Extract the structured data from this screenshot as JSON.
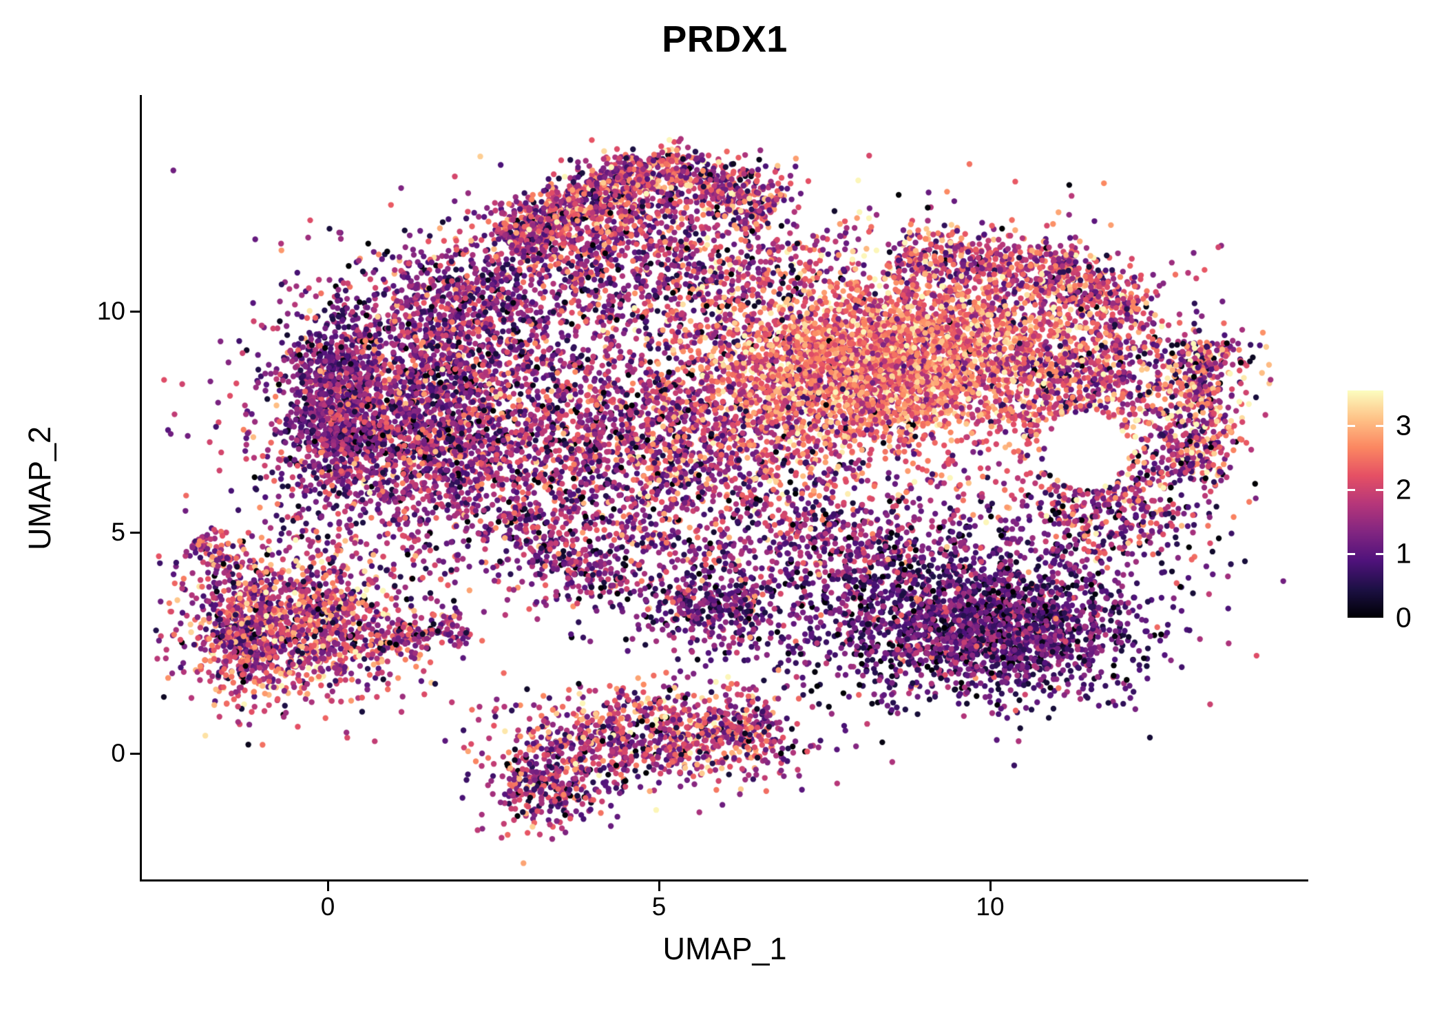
{
  "chart_data": {
    "type": "scatter",
    "title": "PRDX1",
    "xlabel": "UMAP_1",
    "ylabel": "UMAP_2",
    "x_ticks": [
      0,
      5,
      10
    ],
    "y_ticks": [
      0,
      5,
      10
    ],
    "x_range": [
      -2.8,
      14.8
    ],
    "y_range": [
      -2.9,
      14.2
    ],
    "grid": false,
    "legend": {
      "position": "right",
      "ticks": [
        0,
        1,
        2,
        3
      ],
      "vmin": 0,
      "vmax": 3.55
    },
    "colormap": {
      "name": "magma",
      "stops": [
        "#000004",
        "#1c1044",
        "#4f127b",
        "#812581",
        "#b5367a",
        "#e55064",
        "#fb8761",
        "#fec287",
        "#fcfdbf"
      ]
    },
    "point_radius_px": 4.2,
    "seed": 42,
    "hole": {
      "cx": 11.45,
      "cy": 6.85,
      "rx": 0.62,
      "ry": 0.9
    },
    "clusters": [
      {
        "name": "left-lobe",
        "shape": "gauss",
        "cx": 1.3,
        "cy": 7.6,
        "sx": 1.15,
        "sy": 1.5,
        "n": 2600,
        "expr": [
          1.4,
          0.75
        ]
      },
      {
        "name": "left-edge-dense",
        "shape": "gauss",
        "cx": 0.1,
        "cy": 8.0,
        "sx": 0.35,
        "sy": 0.95,
        "n": 600,
        "expr": [
          1.2,
          0.6
        ]
      },
      {
        "name": "left-top",
        "shape": "gauss",
        "cx": 2.3,
        "cy": 10.2,
        "sx": 0.8,
        "sy": 0.8,
        "n": 600,
        "expr": [
          1.4,
          0.7
        ]
      },
      {
        "name": "top-arm-a",
        "shape": "strip",
        "x1": 2.7,
        "y1": 11.6,
        "x2": 4.8,
        "y2": 13.3,
        "w": 0.28,
        "n": 650,
        "expr": [
          1.8,
          0.8
        ]
      },
      {
        "name": "top-arm-scatter",
        "shape": "strip",
        "x1": 3.0,
        "y1": 11.1,
        "x2": 5.2,
        "y2": 12.6,
        "w": 0.55,
        "n": 350,
        "expr": [
          1.6,
          0.8
        ]
      },
      {
        "name": "top-arm-b",
        "shape": "strip",
        "x1": 4.8,
        "y1": 13.35,
        "x2": 6.8,
        "y2": 12.4,
        "w": 0.32,
        "n": 450,
        "expr": [
          1.8,
          0.8
        ]
      },
      {
        "name": "upper-mid",
        "shape": "gauss",
        "cx": 5.3,
        "cy": 10.8,
        "sx": 1.3,
        "sy": 0.95,
        "n": 900,
        "expr": [
          1.5,
          0.8
        ]
      },
      {
        "name": "mid-band",
        "shape": "gauss",
        "cx": 5.0,
        "cy": 7.0,
        "sx": 1.6,
        "sy": 1.15,
        "n": 1700,
        "expr": [
          1.6,
          0.8
        ]
      },
      {
        "name": "core-high",
        "shape": "gauss",
        "cx": 7.9,
        "cy": 8.7,
        "sx": 1.2,
        "sy": 0.95,
        "n": 2400,
        "expr": [
          2.5,
          0.55
        ]
      },
      {
        "name": "core-right",
        "shape": "gauss",
        "cx": 9.6,
        "cy": 9.3,
        "sx": 1.0,
        "sy": 0.85,
        "n": 1000,
        "expr": [
          2.3,
          0.6
        ]
      },
      {
        "name": "top-right-arc",
        "shape": "strip",
        "x1": 8.6,
        "y1": 11.2,
        "x2": 11.3,
        "y2": 10.9,
        "w": 0.4,
        "n": 450,
        "expr": [
          1.9,
          0.8
        ]
      },
      {
        "name": "top-right-edge",
        "shape": "strip",
        "x1": 10.9,
        "y1": 11.0,
        "x2": 12.2,
        "y2": 9.9,
        "w": 0.35,
        "n": 250,
        "expr": [
          1.9,
          0.8
        ]
      },
      {
        "name": "right-lobe",
        "shape": "gauss",
        "cx": 11.4,
        "cy": 8.4,
        "sx": 1.05,
        "sy": 1.15,
        "n": 1100,
        "expr": [
          1.9,
          0.85
        ]
      },
      {
        "name": "right-edge",
        "shape": "strip",
        "x1": 13.05,
        "y1": 6.3,
        "x2": 13.2,
        "y2": 9.3,
        "w": 0.3,
        "n": 450,
        "expr": [
          1.9,
          1.0
        ]
      },
      {
        "name": "right-lower",
        "shape": "gauss",
        "cx": 11.9,
        "cy": 5.6,
        "sx": 0.8,
        "sy": 0.7,
        "n": 450,
        "expr": [
          1.5,
          0.9
        ]
      },
      {
        "name": "bottom-right-lobe",
        "shape": "gauss",
        "cx": 9.6,
        "cy": 3.1,
        "sx": 1.35,
        "sy": 0.95,
        "n": 2000,
        "expr": [
          1.0,
          0.6
        ]
      },
      {
        "name": "bottom-right-dense",
        "shape": "gauss",
        "cx": 10.6,
        "cy": 2.6,
        "sx": 0.7,
        "sy": 0.6,
        "n": 500,
        "expr": [
          0.9,
          0.5
        ]
      },
      {
        "name": "br-connector",
        "shape": "gauss",
        "cx": 7.6,
        "cy": 4.9,
        "sx": 0.9,
        "sy": 0.6,
        "n": 350,
        "expr": [
          1.3,
          0.7
        ]
      },
      {
        "name": "left-island",
        "shape": "gauss",
        "cx": -0.45,
        "cy": 2.9,
        "sx": 0.9,
        "sy": 0.85,
        "n": 1300,
        "expr": [
          1.8,
          0.85
        ]
      },
      {
        "name": "left-island-edge",
        "shape": "gauss",
        "cx": -1.3,
        "cy": 2.6,
        "sx": 0.3,
        "sy": 0.7,
        "n": 250,
        "expr": [
          1.7,
          0.8
        ]
      },
      {
        "name": "left-island-arm",
        "shape": "strip",
        "x1": -1.95,
        "y1": 4.9,
        "x2": -1.55,
        "y2": 4.1,
        "w": 0.18,
        "n": 80,
        "expr": [
          1.6,
          0.7
        ]
      },
      {
        "name": "island-bridge",
        "shape": "strip",
        "x1": 0.7,
        "y1": 2.55,
        "x2": 2.1,
        "y2": 2.9,
        "w": 0.18,
        "n": 130,
        "expr": [
          1.5,
          0.8
        ]
      },
      {
        "name": "bottom-cluster",
        "shape": "gauss",
        "cx": 4.9,
        "cy": 0.35,
        "sx": 1.05,
        "sy": 0.55,
        "n": 800,
        "expr": [
          1.7,
          0.85
        ]
      },
      {
        "name": "bottom-tail",
        "shape": "gauss",
        "cx": 3.3,
        "cy": -0.7,
        "sx": 0.45,
        "sy": 0.5,
        "n": 300,
        "expr": [
          1.5,
          0.8
        ]
      },
      {
        "name": "bottom-right-tip",
        "shape": "gauss",
        "cx": 6.2,
        "cy": 0.6,
        "sx": 0.3,
        "sy": 0.5,
        "n": 150,
        "expr": [
          1.9,
          0.8
        ]
      },
      {
        "name": "mid-sparse",
        "shape": "gauss",
        "cx": 4.3,
        "cy": 4.4,
        "sx": 1.2,
        "sy": 0.7,
        "n": 280,
        "expr": [
          1.2,
          0.7
        ]
      },
      {
        "name": "diag-trail",
        "shape": "strip",
        "x1": 2.6,
        "y1": 5.4,
        "x2": 4.3,
        "y2": 3.7,
        "w": 0.3,
        "n": 200,
        "expr": [
          1.3,
          0.7
        ]
      },
      {
        "name": "lower-mid-clump",
        "shape": "gauss",
        "cx": 5.8,
        "cy": 3.3,
        "sx": 0.55,
        "sy": 0.45,
        "n": 350,
        "expr": [
          1.2,
          0.6
        ]
      },
      {
        "name": "blob-noise",
        "shape": "gauss",
        "cx": 6.5,
        "cy": 8.5,
        "sx": 3.0,
        "sy": 2.3,
        "n": 700,
        "expr": [
          1.7,
          0.9
        ]
      }
    ]
  }
}
